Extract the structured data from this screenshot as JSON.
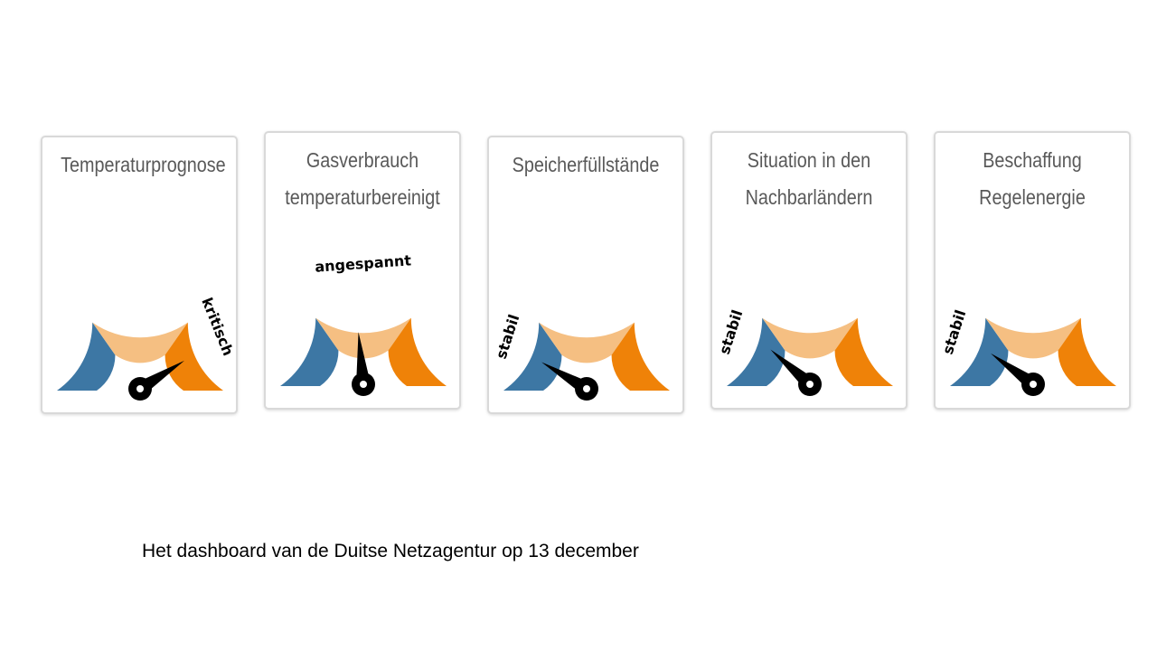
{
  "colors": {
    "blue": "#3d77a4",
    "light_orange": "#f5bf82",
    "orange": "#ef8208",
    "needle": "#000000",
    "card_border": "#d9d9d9",
    "title_text": "#595959"
  },
  "gauges": [
    {
      "title_lines": [
        "Temperaturprognose"
      ],
      "state": "kritisch",
      "needle_fraction": 0.82
    },
    {
      "title_lines": [
        "Gasverbrauch",
        "temperaturbereinigt"
      ],
      "state": "angespannt",
      "needle_fraction": 0.47
    },
    {
      "title_lines": [
        "Speicherfüllstände"
      ],
      "state": "stabil",
      "needle_fraction": 0.17
    },
    {
      "title_lines": [
        "Situation in den",
        "Nachbarländern"
      ],
      "state": "stabil",
      "needle_fraction": 0.23
    },
    {
      "title_lines": [
        "Beschaffung",
        "Regelenergie"
      ],
      "state": "stabil",
      "needle_fraction": 0.2
    }
  ],
  "caption": "Het dashboard van de Duitse Netzagentur op 13 december"
}
